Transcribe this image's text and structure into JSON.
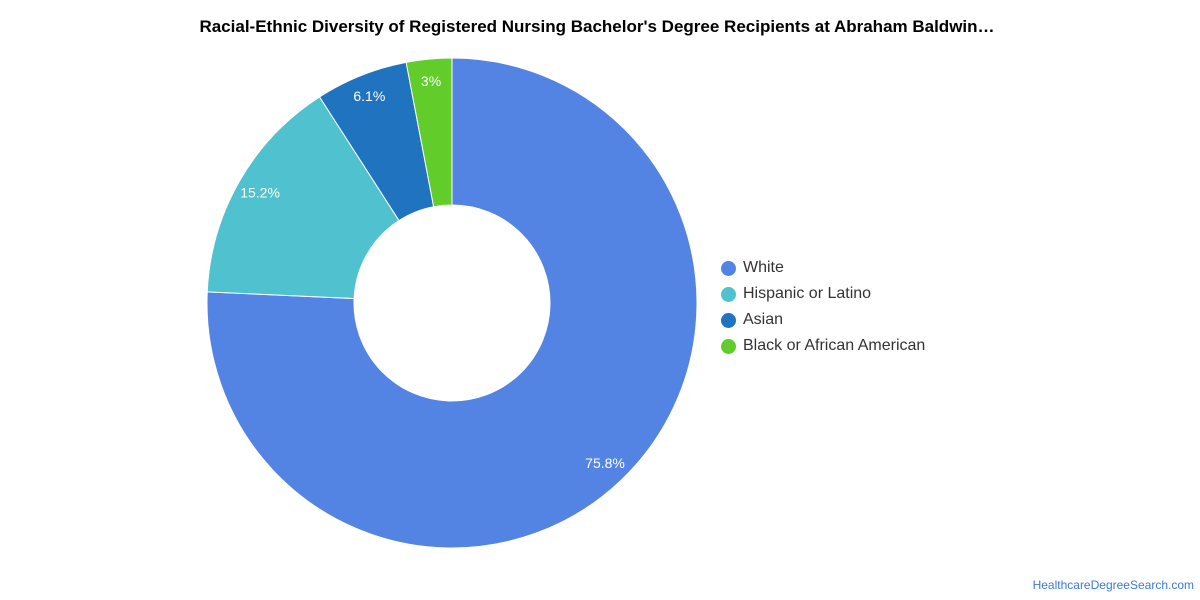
{
  "page": {
    "title": "Racial-Ethnic Diversity of Registered Nursing Bachelor's Degree Recipients at Abraham Baldwin…",
    "credit": "HealthcareDegreeSearch.com"
  },
  "chart_data": {
    "type": "pie",
    "variant": "donut",
    "title": "Racial-Ethnic Diversity of Registered Nursing Bachelor's Degree Recipients at Abraham Baldwin…",
    "legend_position": "right",
    "slices": [
      {
        "name": "White",
        "value": 75.8,
        "label": "75.8%",
        "color": "#5484e3"
      },
      {
        "name": "Hispanic or Latino",
        "value": 15.2,
        "label": "15.2%",
        "color": "#50c1ce"
      },
      {
        "name": "Asian",
        "value": 6.1,
        "label": "6.1%",
        "color": "#1f73bf"
      },
      {
        "name": "Black or African American",
        "value": 3,
        "label": "3%",
        "color": "#61cc2a"
      }
    ]
  }
}
